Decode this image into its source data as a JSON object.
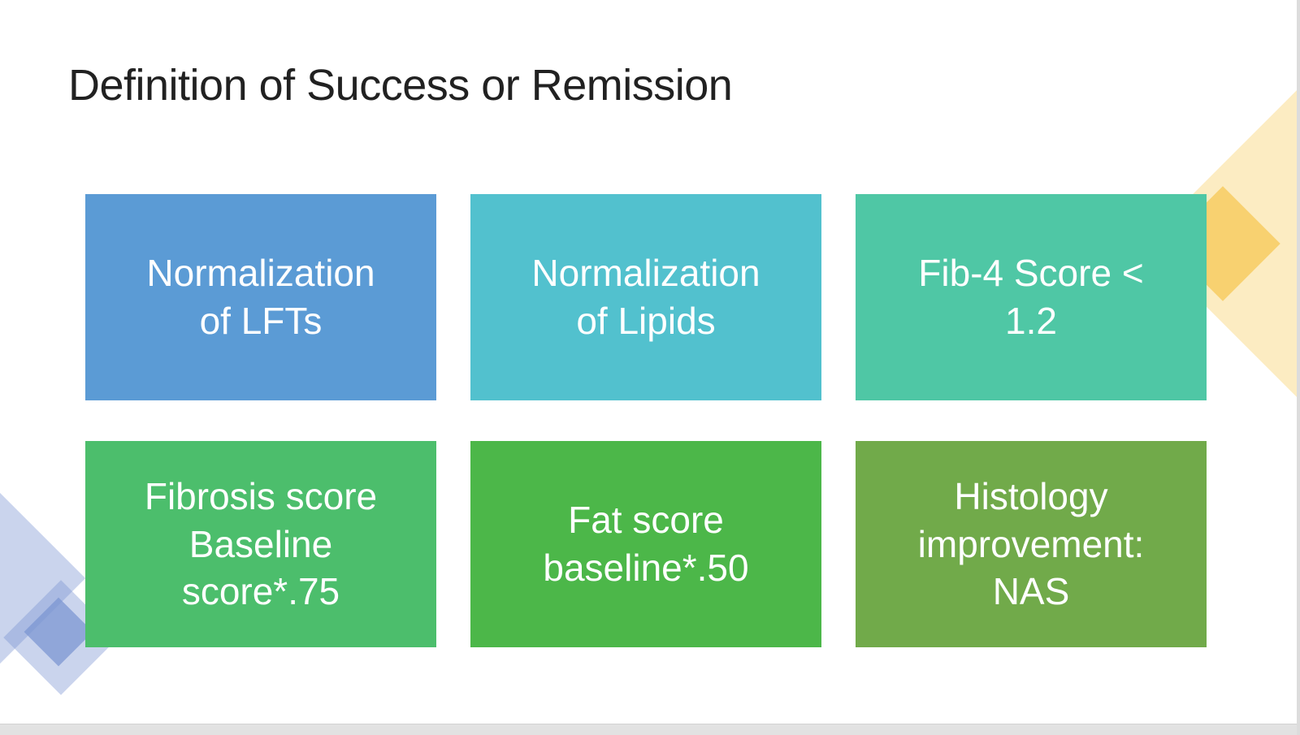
{
  "slide": {
    "title": "Definition of Success or Remission",
    "title_color": "#212121",
    "text_color": "#FFFFFF",
    "boxes": [
      {
        "id": "normalization-lfts",
        "text": "Normalization\nof LFTs",
        "color": "#5B9BD5"
      },
      {
        "id": "normalization-lipids",
        "text": "Normalization\nof Lipids",
        "color": "#52C1CE"
      },
      {
        "id": "fib4-score",
        "text": "Fib-4 Score <\n1.2",
        "color": "#4FC7A5"
      },
      {
        "id": "fibrosis-score",
        "text": "Fibrosis score\nBaseline\nscore*.75",
        "color": "#4CBE6C"
      },
      {
        "id": "fat-score",
        "text": "Fat score\nbaseline*.50",
        "color": "#4CB749"
      },
      {
        "id": "histology-improvement",
        "text": "Histology\nimprovement:\nNAS",
        "color": "#71AA4A"
      }
    ]
  }
}
